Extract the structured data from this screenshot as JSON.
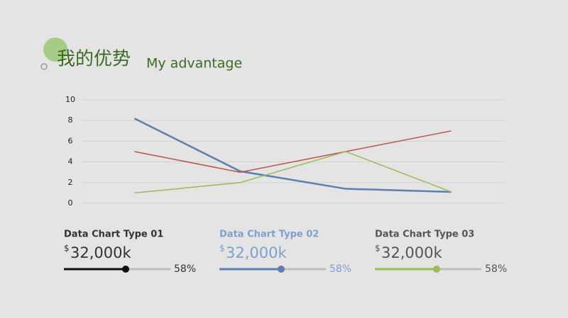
{
  "header": {
    "title": "我的优势",
    "subtitle": "My advantage"
  },
  "chart_data": {
    "type": "line",
    "categories": [
      null,
      null,
      null,
      null
    ],
    "series": [
      {
        "color": "#5b7fb0",
        "values": [
          8.2,
          3.1,
          1.4,
          1.1
        ]
      },
      {
        "color": "#c0504d",
        "values": [
          5,
          3,
          5,
          7
        ]
      },
      {
        "color": "#9bbb59",
        "values": [
          1,
          2,
          5,
          1.1
        ]
      }
    ],
    "ylim": [
      0,
      10
    ],
    "yticks": [
      0,
      2,
      4,
      6,
      8,
      10
    ],
    "grid": true
  },
  "stats": [
    {
      "title": "Data Chart Type 01",
      "currency": "$",
      "amount": "32,000k",
      "progress": {
        "value": 58,
        "label": "58%"
      },
      "color": "#111111"
    },
    {
      "title": "Data Chart Type 02",
      "currency": "$",
      "amount": "32,000k",
      "progress": {
        "value": 58,
        "label": "58%"
      },
      "color": "#5b7fb0"
    },
    {
      "title": "Data Chart Type 03",
      "currency": "$",
      "amount": "32,000k",
      "progress": {
        "value": 58,
        "label": "58%"
      },
      "color": "#9bbb59"
    }
  ]
}
